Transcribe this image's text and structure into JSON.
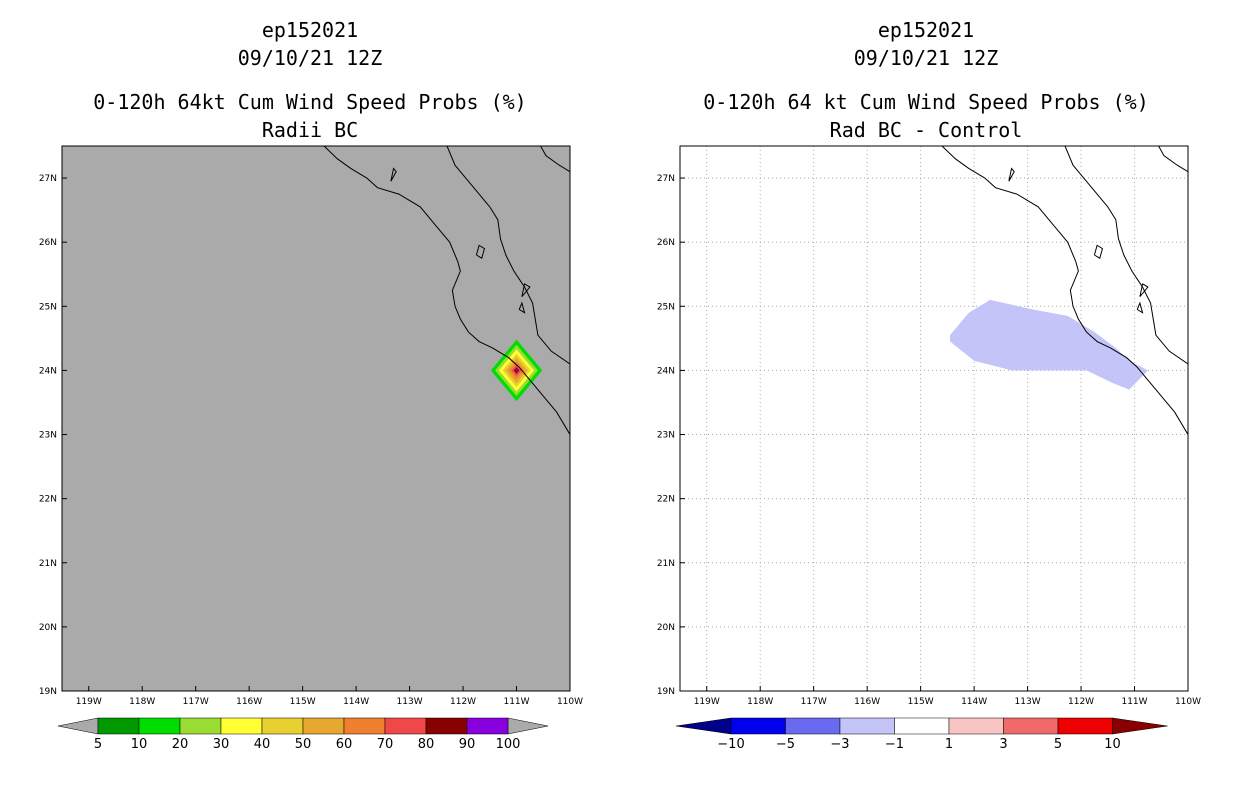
{
  "chart_data": [
    {
      "type": "heatmap",
      "storm_id": "ep152021",
      "date": "09/10/21 12Z",
      "title": "0-120h 64kt Cum Wind Speed Probs (%)",
      "subtitle": "Radii BC",
      "xlabel": "",
      "ylabel": "",
      "xlim": [
        -119.5,
        -110
      ],
      "ylim": [
        19,
        27.5
      ],
      "x_ticks": [
        "119W",
        "118W",
        "117W",
        "116W",
        "115W",
        "114W",
        "113W",
        "112W",
        "111W",
        "110W"
      ],
      "y_ticks": [
        "19N",
        "20N",
        "21N",
        "22N",
        "23N",
        "24N",
        "25N",
        "26N",
        "27N"
      ],
      "grid": false,
      "background_color": "#aaaaaa",
      "colorbar": {
        "labels": [
          "5",
          "10",
          "20",
          "30",
          "40",
          "50",
          "60",
          "70",
          "80",
          "90",
          "100"
        ],
        "colors": [
          "#009900",
          "#00dd00",
          "#99dd33",
          "#ffff33",
          "#e8d030",
          "#e6a830",
          "#f08030",
          "#f04848",
          "#880000",
          "#8800dd"
        ]
      },
      "feature": {
        "name": "probability-diamond",
        "center_lon": -111.0,
        "center_lat": 24.0,
        "rings": [
          {
            "half_width_deg": 0.48,
            "color": "#00dd00"
          },
          {
            "half_width_deg": 0.4,
            "color": "#99dd33"
          },
          {
            "half_width_deg": 0.33,
            "color": "#ffff33"
          },
          {
            "half_width_deg": 0.26,
            "color": "#e8d030"
          },
          {
            "half_width_deg": 0.2,
            "color": "#e6a830"
          },
          {
            "half_width_deg": 0.14,
            "color": "#f08030"
          },
          {
            "half_width_deg": 0.09,
            "color": "#f04848"
          },
          {
            "half_width_deg": 0.05,
            "color": "#880000"
          },
          {
            "half_width_deg": 0.025,
            "color": "#8800dd"
          }
        ]
      }
    },
    {
      "type": "heatmap",
      "storm_id": "ep152021",
      "date": "09/10/21 12Z",
      "title": "0-120h 64 kt Cum Wind Speed Probs (%)",
      "subtitle": "Rad BC - Control",
      "xlabel": "",
      "ylabel": "",
      "xlim": [
        -119.5,
        -110
      ],
      "ylim": [
        19,
        27.5
      ],
      "x_ticks": [
        "119W",
        "118W",
        "117W",
        "116W",
        "115W",
        "114W",
        "113W",
        "112W",
        "111W",
        "110W"
      ],
      "y_ticks": [
        "19N",
        "20N",
        "21N",
        "22N",
        "23N",
        "24N",
        "25N",
        "26N",
        "27N"
      ],
      "grid": true,
      "background_color": "#ffffff",
      "colorbar": {
        "labels": [
          "-10",
          "-5",
          "-3",
          "-1",
          "1",
          "3",
          "5",
          "10"
        ],
        "colors": [
          "#000088",
          "#0000ee",
          "#6a6af0",
          "#c4c4f8",
          "#ffffff",
          "#f8c4c4",
          "#f06a6a",
          "#ee0000",
          "#880000"
        ]
      },
      "feature": {
        "name": "difference-region",
        "value_range": "-3 to -1",
        "color": "#c4c4f8",
        "polygon": [
          [
            -114.45,
            24.55
          ],
          [
            -114.1,
            24.9
          ],
          [
            -113.7,
            25.1
          ],
          [
            -112.9,
            24.95
          ],
          [
            -112.25,
            24.85
          ],
          [
            -111.75,
            24.6
          ],
          [
            -111.35,
            24.35
          ],
          [
            -111.1,
            24.15
          ],
          [
            -110.75,
            24.0
          ],
          [
            -111.1,
            23.7
          ],
          [
            -111.4,
            23.8
          ],
          [
            -111.9,
            24.0
          ],
          [
            -112.7,
            24.0
          ],
          [
            -113.3,
            24.0
          ],
          [
            -114.0,
            24.15
          ],
          [
            -114.45,
            24.45
          ]
        ]
      }
    }
  ],
  "coastline": {
    "color": "#000000",
    "baja_west": [
      [
        -114.6,
        27.5
      ],
      [
        -114.35,
        27.3
      ],
      [
        -114.1,
        27.15
      ],
      [
        -113.8,
        27.0
      ],
      [
        -113.6,
        26.85
      ],
      [
        -113.2,
        26.75
      ],
      [
        -112.8,
        26.55
      ],
      [
        -112.5,
        26.25
      ],
      [
        -112.25,
        26.0
      ],
      [
        -112.1,
        25.7
      ],
      [
        -112.05,
        25.55
      ],
      [
        -112.2,
        25.25
      ],
      [
        -112.15,
        25.0
      ],
      [
        -112.05,
        24.8
      ],
      [
        -111.9,
        24.6
      ],
      [
        -111.7,
        24.45
      ],
      [
        -111.45,
        24.35
      ],
      [
        -111.15,
        24.2
      ],
      [
        -110.95,
        24.05
      ],
      [
        -110.75,
        23.85
      ],
      [
        -110.5,
        23.6
      ],
      [
        -110.25,
        23.35
      ],
      [
        -110.0,
        23.0
      ],
      [
        -109.9,
        22.9
      ]
    ],
    "baja_east": [
      [
        -112.3,
        27.5
      ],
      [
        -112.15,
        27.2
      ],
      [
        -111.95,
        27.0
      ],
      [
        -111.7,
        26.75
      ],
      [
        -111.5,
        26.55
      ],
      [
        -111.35,
        26.35
      ],
      [
        -111.3,
        26.05
      ],
      [
        -111.2,
        25.8
      ],
      [
        -111.05,
        25.55
      ],
      [
        -110.85,
        25.3
      ],
      [
        -110.7,
        25.05
      ],
      [
        -110.65,
        24.8
      ],
      [
        -110.6,
        24.55
      ],
      [
        -110.35,
        24.3
      ],
      [
        -110.0,
        24.1
      ]
    ],
    "mainland": [
      [
        -110.55,
        27.5
      ],
      [
        -110.45,
        27.35
      ],
      [
        -110.2,
        27.2
      ],
      [
        -110.0,
        27.1
      ]
    ],
    "islands": [
      [
        [
          -111.75,
          25.8
        ],
        [
          -111.7,
          25.95
        ],
        [
          -111.6,
          25.9
        ],
        [
          -111.65,
          25.75
        ],
        [
          -111.75,
          25.8
        ]
      ],
      [
        [
          -113.35,
          26.95
        ],
        [
          -113.3,
          27.15
        ],
        [
          -113.25,
          27.1
        ],
        [
          -113.35,
          26.95
        ]
      ],
      [
        [
          -110.9,
          25.15
        ],
        [
          -110.85,
          25.35
        ],
        [
          -110.75,
          25.3
        ],
        [
          -110.9,
          25.15
        ]
      ],
      [
        [
          -110.95,
          24.95
        ],
        [
          -110.9,
          25.05
        ],
        [
          -110.85,
          24.9
        ],
        [
          -110.95,
          24.95
        ]
      ]
    ]
  }
}
